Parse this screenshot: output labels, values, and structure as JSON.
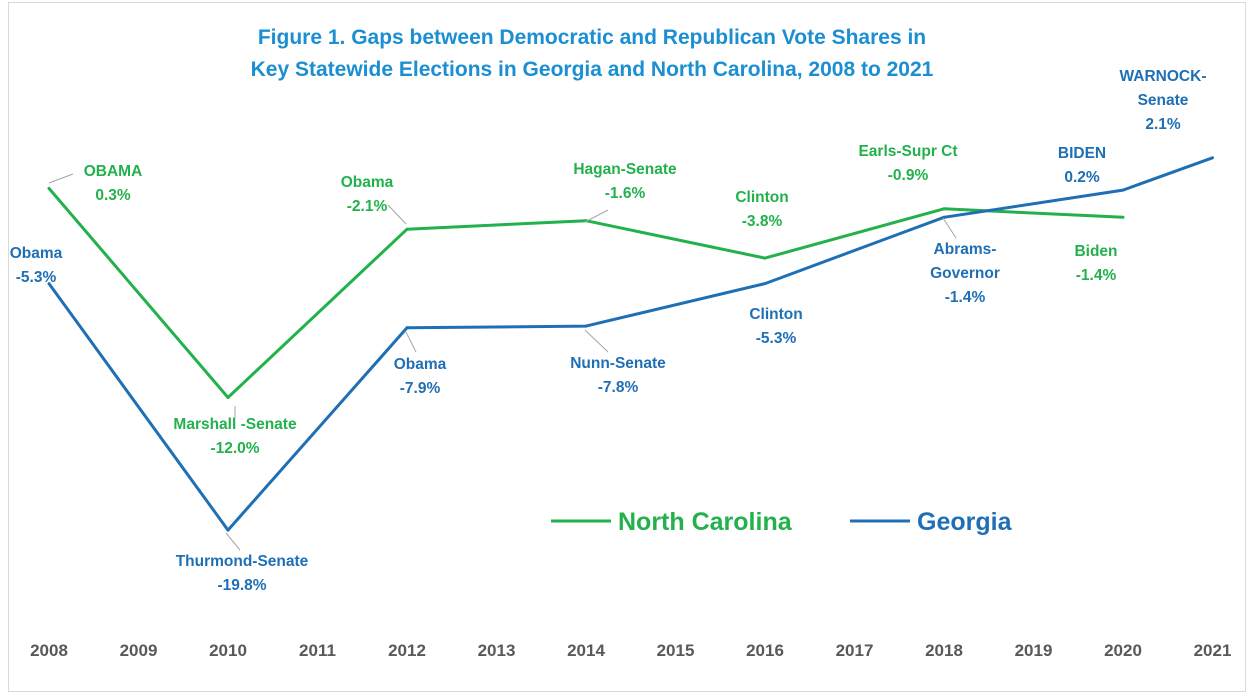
{
  "chart_data": {
    "type": "line",
    "title": "Figure 1. Gaps between Democratic and Republican Vote Shares in",
    "subtitle": "Key Statewide Elections in Georgia and North Carolina, 2008 to 2021",
    "xlabel": "",
    "ylabel": "",
    "categories": [
      "2008",
      "2009",
      "2010",
      "2011",
      "2012",
      "2013",
      "2014",
      "2015",
      "2016",
      "2017",
      "2018",
      "2019",
      "2020",
      "2021"
    ],
    "grid": false,
    "legend_position": "center-bottom",
    "series": [
      {
        "name": "North Carolina",
        "color": "#22b14c",
        "x": [
          2008,
          2010,
          2012,
          2014,
          2016,
          2018,
          2020
        ],
        "values": [
          0.3,
          -12.0,
          -2.1,
          -1.6,
          -3.8,
          -0.9,
          -1.4
        ],
        "point_labels": [
          [
            "OBAMA",
            "0.3%"
          ],
          [
            "Marshall -Senate",
            "-12.0%"
          ],
          [
            "Obama",
            "-2.1%"
          ],
          [
            "Hagan-Senate",
            "-1.6%"
          ],
          [
            "Clinton",
            "-3.8%"
          ],
          [
            "Earls-Supr Ct",
            "-0.9%"
          ],
          [
            "Biden",
            "-1.4%"
          ]
        ]
      },
      {
        "name": "Georgia",
        "color": "#1f6fb5",
        "x": [
          2008,
          2010,
          2012,
          2014,
          2016,
          2018,
          2020,
          2021
        ],
        "values": [
          -5.3,
          -19.8,
          -7.9,
          -7.8,
          -5.3,
          -1.4,
          0.2,
          2.1
        ],
        "point_labels": [
          [
            "Obama",
            "-5.3%"
          ],
          [
            "Thurmond-Senate",
            "-19.8%"
          ],
          [
            "Obama",
            "-7.9%"
          ],
          [
            "Nunn-Senate",
            "-7.8%"
          ],
          [
            "Clinton",
            "-5.3%"
          ],
          [
            "Abrams-",
            "Governor",
            "-1.4%"
          ],
          [
            "BIDEN",
            "0.2%"
          ],
          [
            "WARNOCK-",
            "Senate",
            "2.1%"
          ]
        ]
      }
    ]
  },
  "colors": {
    "title": "#1b8fd2",
    "north_carolina": "#22b14c",
    "georgia": "#1f6fb5",
    "leader": "#a6a6a6",
    "tick": "#595959"
  }
}
